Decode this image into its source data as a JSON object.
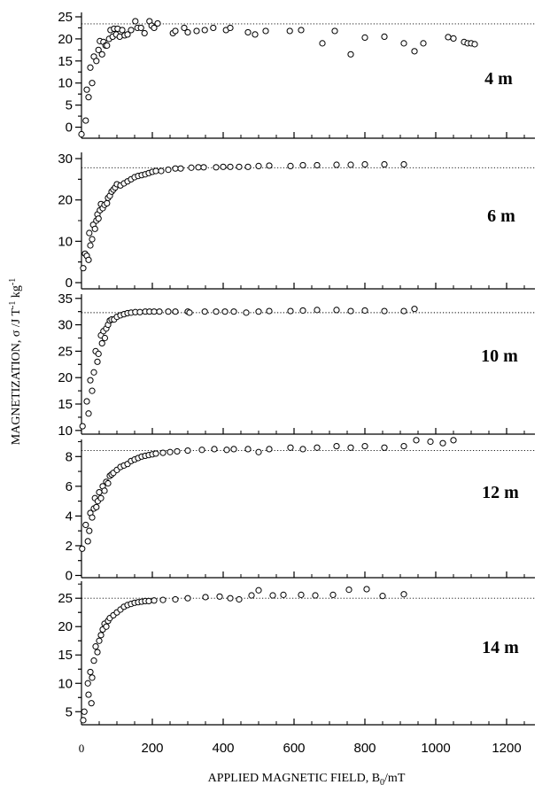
{
  "chart_data": {
    "type": "scatter",
    "xlabel": "APPLIED MAGNETIC FIELD, B",
    "xlabel_sub": "0",
    "xlabel_unit": "/mT",
    "ylabel_main": "MAGNETIZATION, σ /J T",
    "ylabel_sup1": "-1",
    "ylabel_mid": " kg",
    "ylabel_sup2": "-1",
    "xlim": [
      0,
      1280
    ],
    "x_tick_values": [
      0,
      200,
      400,
      600,
      800,
      1000,
      1200
    ],
    "x_tick_labels": [
      "0",
      "200",
      "400",
      "600",
      "800",
      "1000",
      "1200"
    ],
    "panels": [
      {
        "label": "4 m",
        "ylim": [
          -2.5,
          26
        ],
        "y_ticks": [
          0,
          5,
          10,
          15,
          20,
          25
        ],
        "y_tick_labels": [
          "0",
          "5",
          "10",
          "15",
          "20",
          "25"
        ],
        "saturation": 23.4,
        "points": [
          [
            0,
            -1.6
          ],
          [
            12,
            1.5
          ],
          [
            15,
            8.5
          ],
          [
            20,
            6.8
          ],
          [
            25,
            13.5
          ],
          [
            30,
            10
          ],
          [
            35,
            16
          ],
          [
            42,
            15
          ],
          [
            48,
            17.5
          ],
          [
            52,
            19.5
          ],
          [
            58,
            16.5
          ],
          [
            62,
            19.3
          ],
          [
            68,
            18.5
          ],
          [
            72,
            18.5
          ],
          [
            78,
            20
          ],
          [
            82,
            22
          ],
          [
            88,
            20.5
          ],
          [
            92,
            22.3
          ],
          [
            98,
            21
          ],
          [
            102,
            22.3
          ],
          [
            108,
            20.5
          ],
          [
            115,
            22
          ],
          [
            122,
            20.8
          ],
          [
            130,
            21
          ],
          [
            140,
            22
          ],
          [
            152,
            24
          ],
          [
            158,
            22.5
          ],
          [
            168,
            22.5
          ],
          [
            178,
            21.3
          ],
          [
            192,
            24
          ],
          [
            198,
            23
          ],
          [
            205,
            22.5
          ],
          [
            215,
            23.5
          ],
          [
            258,
            21.3
          ],
          [
            265,
            21.8
          ],
          [
            290,
            22.5
          ],
          [
            300,
            21.5
          ],
          [
            325,
            21.8
          ],
          [
            348,
            22
          ],
          [
            372,
            22.5
          ],
          [
            408,
            22
          ],
          [
            420,
            22.5
          ],
          [
            470,
            21.5
          ],
          [
            490,
            21
          ],
          [
            520,
            21.8
          ],
          [
            588,
            21.8
          ],
          [
            620,
            22
          ],
          [
            680,
            19
          ],
          [
            715,
            21.8
          ],
          [
            760,
            16.5
          ],
          [
            800,
            20.3
          ],
          [
            855,
            20.5
          ],
          [
            910,
            19
          ],
          [
            940,
            17.2
          ],
          [
            965,
            19
          ],
          [
            1035,
            20.4
          ],
          [
            1050,
            20.1
          ],
          [
            1080,
            19.3
          ],
          [
            1090,
            19
          ],
          [
            1100,
            19
          ],
          [
            1110,
            18.8
          ]
        ]
      },
      {
        "label": "6 m",
        "ylim": [
          -1.5,
          31.5
        ],
        "y_ticks": [
          0,
          10,
          20,
          30
        ],
        "y_tick_labels": [
          "0",
          "10",
          "20",
          "30"
        ],
        "saturation": 27.8,
        "points": [
          [
            5,
            3.5
          ],
          [
            10,
            7
          ],
          [
            15,
            6.5
          ],
          [
            20,
            5.5
          ],
          [
            22,
            12
          ],
          [
            25,
            9
          ],
          [
            30,
            10.5
          ],
          [
            33,
            14
          ],
          [
            38,
            13
          ],
          [
            42,
            15
          ],
          [
            45,
            16.5
          ],
          [
            48,
            15.5
          ],
          [
            52,
            17.5
          ],
          [
            55,
            19
          ],
          [
            60,
            18
          ],
          [
            65,
            18.8
          ],
          [
            72,
            19.2
          ],
          [
            75,
            20.5
          ],
          [
            80,
            21
          ],
          [
            85,
            22
          ],
          [
            90,
            22.5
          ],
          [
            95,
            23
          ],
          [
            100,
            23.8
          ],
          [
            110,
            23.5
          ],
          [
            120,
            24
          ],
          [
            130,
            24.5
          ],
          [
            140,
            25
          ],
          [
            150,
            25.5
          ],
          [
            160,
            25.8
          ],
          [
            170,
            26
          ],
          [
            180,
            26.2
          ],
          [
            190,
            26.5
          ],
          [
            200,
            26.8
          ],
          [
            210,
            27
          ],
          [
            225,
            27
          ],
          [
            245,
            27.3
          ],
          [
            265,
            27.6
          ],
          [
            280,
            27.6
          ],
          [
            310,
            27.8
          ],
          [
            330,
            27.9
          ],
          [
            345,
            27.9
          ],
          [
            380,
            27.9
          ],
          [
            400,
            28
          ],
          [
            420,
            28
          ],
          [
            445,
            28
          ],
          [
            470,
            28
          ],
          [
            500,
            28.2
          ],
          [
            530,
            28.3
          ],
          [
            590,
            28.2
          ],
          [
            625,
            28.4
          ],
          [
            665,
            28.4
          ],
          [
            720,
            28.5
          ],
          [
            760,
            28.5
          ],
          [
            800,
            28.6
          ],
          [
            855,
            28.6
          ],
          [
            910,
            28.6
          ]
        ]
      },
      {
        "label": "10 m",
        "ylim": [
          9.3,
          35.8
        ],
        "y_ticks": [
          10,
          15,
          20,
          25,
          30,
          35
        ],
        "y_tick_labels": [
          "10",
          "15",
          "20",
          "25",
          "30",
          "35"
        ],
        "saturation": 32.3,
        "points": [
          [
            3,
            10.8
          ],
          [
            15,
            15.5
          ],
          [
            20,
            13.2
          ],
          [
            25,
            19.5
          ],
          [
            30,
            17.5
          ],
          [
            35,
            21
          ],
          [
            40,
            25
          ],
          [
            45,
            23
          ],
          [
            48,
            24.5
          ],
          [
            55,
            28
          ],
          [
            58,
            26.5
          ],
          [
            62,
            28.8
          ],
          [
            66,
            27.5
          ],
          [
            70,
            29.3
          ],
          [
            75,
            30
          ],
          [
            80,
            30.8
          ],
          [
            85,
            31
          ],
          [
            92,
            31
          ],
          [
            100,
            31.5
          ],
          [
            110,
            31.8
          ],
          [
            120,
            32
          ],
          [
            130,
            32.2
          ],
          [
            140,
            32.3
          ],
          [
            152,
            32.4
          ],
          [
            165,
            32.4
          ],
          [
            180,
            32.5
          ],
          [
            192,
            32.5
          ],
          [
            205,
            32.5
          ],
          [
            220,
            32.5
          ],
          [
            245,
            32.5
          ],
          [
            265,
            32.5
          ],
          [
            300,
            32.5
          ],
          [
            305,
            32.3
          ],
          [
            348,
            32.5
          ],
          [
            380,
            32.5
          ],
          [
            405,
            32.5
          ],
          [
            430,
            32.5
          ],
          [
            465,
            32.3
          ],
          [
            500,
            32.5
          ],
          [
            530,
            32.6
          ],
          [
            590,
            32.6
          ],
          [
            625,
            32.7
          ],
          [
            665,
            32.8
          ],
          [
            720,
            32.8
          ],
          [
            760,
            32.6
          ],
          [
            800,
            32.7
          ],
          [
            855,
            32.6
          ],
          [
            910,
            32.6
          ],
          [
            940,
            33
          ]
        ]
      },
      {
        "label": "12 m",
        "ylim": [
          -0.15,
          9.15
        ],
        "y_ticks": [
          0,
          2,
          4,
          6,
          8
        ],
        "y_tick_labels": [
          "0",
          "2",
          "4",
          "6",
          "8"
        ],
        "saturation": 8.4,
        "points": [
          [
            2,
            1.8
          ],
          [
            12,
            3.4
          ],
          [
            18,
            2.3
          ],
          [
            22,
            3
          ],
          [
            25,
            4.2
          ],
          [
            30,
            3.9
          ],
          [
            35,
            4.5
          ],
          [
            38,
            5.2
          ],
          [
            42,
            4.6
          ],
          [
            46,
            5
          ],
          [
            50,
            5.6
          ],
          [
            55,
            5.2
          ],
          [
            60,
            6
          ],
          [
            65,
            5.7
          ],
          [
            70,
            6.3
          ],
          [
            75,
            6.2
          ],
          [
            80,
            6.7
          ],
          [
            85,
            6.8
          ],
          [
            90,
            6.9
          ],
          [
            100,
            7.1
          ],
          [
            110,
            7.3
          ],
          [
            120,
            7.4
          ],
          [
            130,
            7.5
          ],
          [
            140,
            7.7
          ],
          [
            150,
            7.8
          ],
          [
            160,
            7.9
          ],
          [
            170,
            8
          ],
          [
            180,
            8.05
          ],
          [
            190,
            8.1
          ],
          [
            200,
            8.15
          ],
          [
            210,
            8.2
          ],
          [
            230,
            8.25
          ],
          [
            250,
            8.3
          ],
          [
            270,
            8.35
          ],
          [
            300,
            8.4
          ],
          [
            340,
            8.45
          ],
          [
            375,
            8.5
          ],
          [
            410,
            8.45
          ],
          [
            430,
            8.5
          ],
          [
            470,
            8.5
          ],
          [
            500,
            8.3
          ],
          [
            530,
            8.5
          ],
          [
            590,
            8.6
          ],
          [
            625,
            8.5
          ],
          [
            665,
            8.6
          ],
          [
            720,
            8.7
          ],
          [
            760,
            8.6
          ],
          [
            800,
            8.7
          ],
          [
            855,
            8.6
          ],
          [
            910,
            8.7
          ],
          [
            945,
            9.1
          ],
          [
            985,
            9
          ],
          [
            1020,
            8.9
          ],
          [
            1050,
            9.1
          ]
        ]
      },
      {
        "label": "14 m",
        "ylim": [
          2.7,
          28
        ],
        "y_ticks": [
          5,
          10,
          15,
          20,
          25
        ],
        "y_tick_labels": [
          "5",
          "10",
          "15",
          "20",
          "25"
        ],
        "saturation": 25,
        "points": [
          [
            5,
            3.5
          ],
          [
            8,
            5
          ],
          [
            18,
            10
          ],
          [
            20,
            8
          ],
          [
            25,
            12
          ],
          [
            28,
            6.5
          ],
          [
            30,
            11
          ],
          [
            35,
            14
          ],
          [
            40,
            16.5
          ],
          [
            45,
            15.5
          ],
          [
            50,
            17.5
          ],
          [
            55,
            18.5
          ],
          [
            60,
            19.5
          ],
          [
            65,
            20.5
          ],
          [
            70,
            20
          ],
          [
            75,
            21
          ],
          [
            80,
            21.5
          ],
          [
            90,
            22
          ],
          [
            100,
            22.5
          ],
          [
            110,
            23
          ],
          [
            120,
            23.5
          ],
          [
            130,
            23.8
          ],
          [
            140,
            24
          ],
          [
            150,
            24.2
          ],
          [
            160,
            24.3
          ],
          [
            170,
            24.4
          ],
          [
            180,
            24.5
          ],
          [
            190,
            24.5
          ],
          [
            205,
            24.6
          ],
          [
            230,
            24.7
          ],
          [
            265,
            24.8
          ],
          [
            300,
            25
          ],
          [
            350,
            25.2
          ],
          [
            390,
            25.3
          ],
          [
            420,
            25
          ],
          [
            445,
            24.8
          ],
          [
            480,
            25.5
          ],
          [
            500,
            26.4
          ],
          [
            540,
            25.5
          ],
          [
            570,
            25.6
          ],
          [
            620,
            25.6
          ],
          [
            660,
            25.5
          ],
          [
            710,
            25.6
          ],
          [
            755,
            26.5
          ],
          [
            805,
            26.6
          ],
          [
            850,
            25.4
          ],
          [
            910,
            25.7
          ]
        ]
      }
    ]
  }
}
